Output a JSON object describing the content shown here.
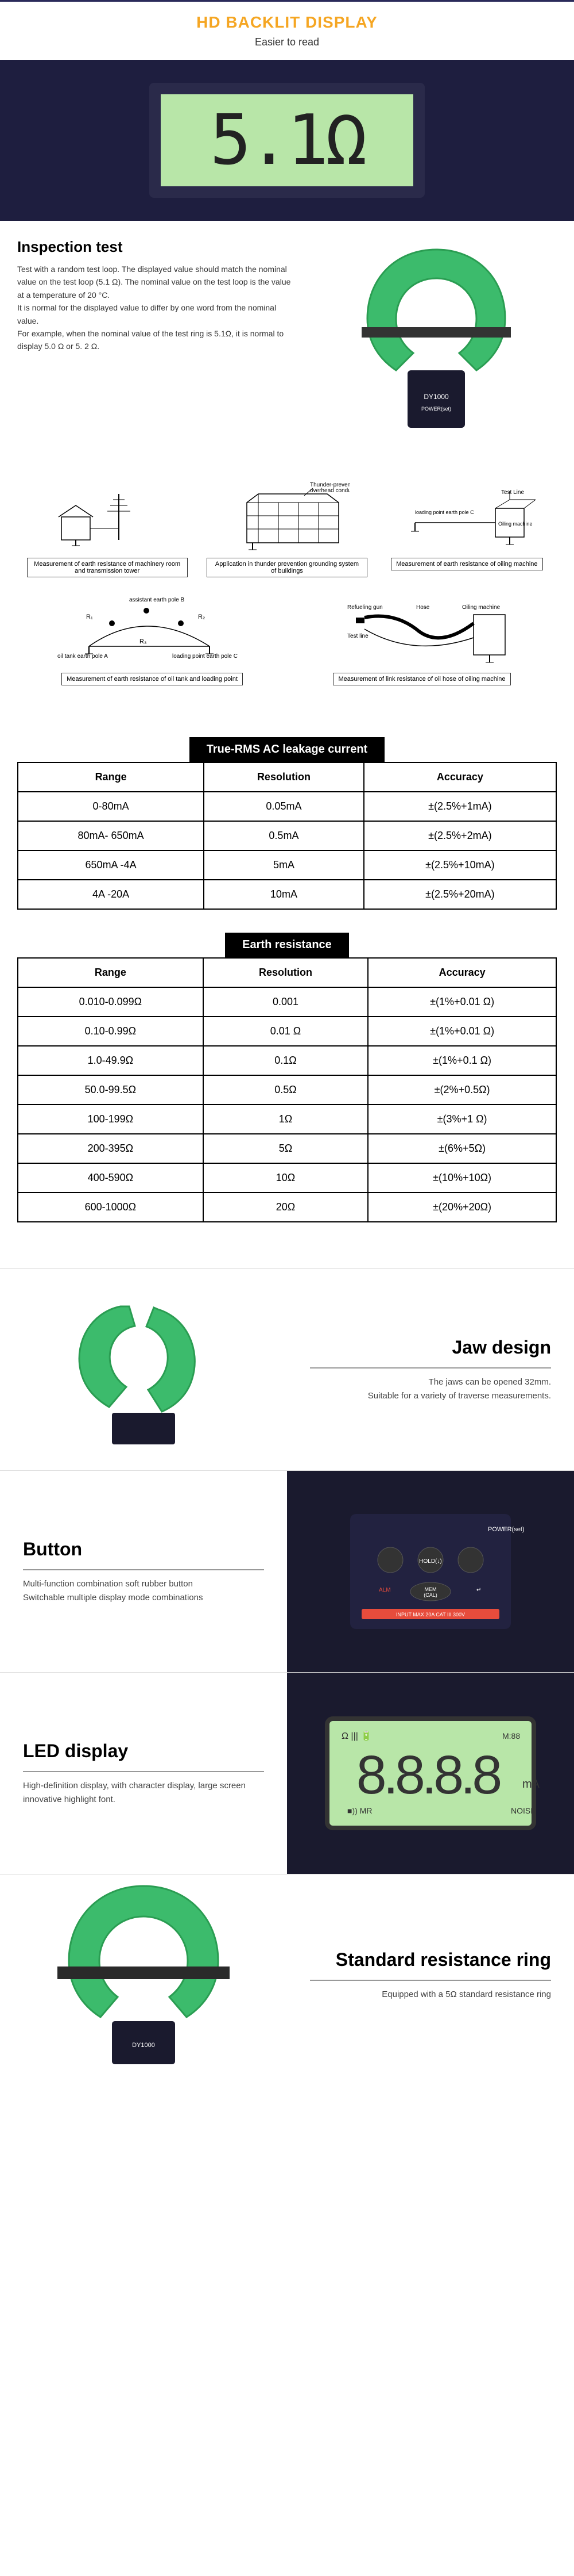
{
  "hd": {
    "title": "HD BACKLIT DISPLAY",
    "subtitle": "Easier to read",
    "lcd_value": "5.1Ω"
  },
  "inspection": {
    "title": "Inspection test",
    "desc": "Test with a random test loop. The displayed value should match the nominal value on the test loop (5.1 Ω). The nominal value on the test loop is the value at a temperature of 20 °C.\nIt is normal for the displayed value to differ by one word from the nominal value.\nFor example, when the nominal value of the test ring is 5.1Ω, it is normal to display 5.0 Ω or 5. 2 Ω."
  },
  "diagrams": {
    "row1": [
      {
        "caption": "Measurement of earth resistance of machinery room and transmission tower"
      },
      {
        "caption": "Application in thunder prevention grounding system of buildings",
        "label": "Thunder-prevention overhead conductor"
      },
      {
        "caption": "Measurement of earth resistance of oiling machine",
        "labels": [
          "Test Line",
          "loading point earth pole C",
          "Oiling machine"
        ]
      }
    ],
    "row2": [
      {
        "caption": "Measurement of earth resistance of oil tank and loading point",
        "labels": [
          "assistant earth pole B",
          "R₁",
          "R₂",
          "R₃",
          "oil tank earth pole A",
          "loading point earth pole C"
        ]
      },
      {
        "caption": "Measurement of link resistance of oil hose of oiling machine",
        "labels": [
          "Refueling gun",
          "Hose",
          "Oiling machine",
          "Test line"
        ]
      }
    ]
  },
  "table_ac": {
    "title": "True-RMS AC leakage current",
    "headers": [
      "Range",
      "Resolution",
      "Accuracy"
    ],
    "rows": [
      [
        "0-80mA",
        "0.05mA",
        "±(2.5%+1mA)"
      ],
      [
        "80mA- 650mA",
        "0.5mA",
        "±(2.5%+2mA)"
      ],
      [
        "650mA -4A",
        "5mA",
        "±(2.5%+10mA)"
      ],
      [
        "4A -20A",
        "10mA",
        "±(2.5%+20mA)"
      ]
    ]
  },
  "table_earth": {
    "title": "Earth resistance",
    "headers": [
      "Range",
      "Resolution",
      "Accuracy"
    ],
    "rows": [
      [
        "0.010-0.099Ω",
        "0.001",
        "±(1%+0.01 Ω)"
      ],
      [
        "0.10-0.99Ω",
        "0.01 Ω",
        "±(1%+0.01 Ω)"
      ],
      [
        "1.0-49.9Ω",
        "0.1Ω",
        "±(1%+0.1 Ω)"
      ],
      [
        "50.0-99.5Ω",
        "0.5Ω",
        "±(2%+0.5Ω)"
      ],
      [
        "100-199Ω",
        "1Ω",
        "±(3%+1 Ω)"
      ],
      [
        "200-395Ω",
        "5Ω",
        "±(6%+5Ω)"
      ],
      [
        "400-590Ω",
        "10Ω",
        "±(10%+10Ω)"
      ],
      [
        "600-1000Ω",
        "20Ω",
        "±(20%+20Ω)"
      ]
    ]
  },
  "features": {
    "jaw": {
      "title": "Jaw design",
      "desc": "The jaws can be opened 32mm.\nSuitable for a variety of traverse measurements."
    },
    "button": {
      "title": "Button",
      "desc": "Multi-function combination soft rubber button\nSwitchable multiple display mode combinations"
    },
    "led": {
      "title": "LED display",
      "desc": "High-definition display, with character display, large screen innovative highlight font."
    },
    "ring": {
      "title": "Standard resistance ring",
      "desc": "Equipped with a 5Ω standard resistance ring"
    }
  },
  "colors": {
    "accent": "#f5a623",
    "dark_blue": "#1e1e3f",
    "green": "#3cbb6c",
    "lcd_green": "#b8e6a8"
  }
}
